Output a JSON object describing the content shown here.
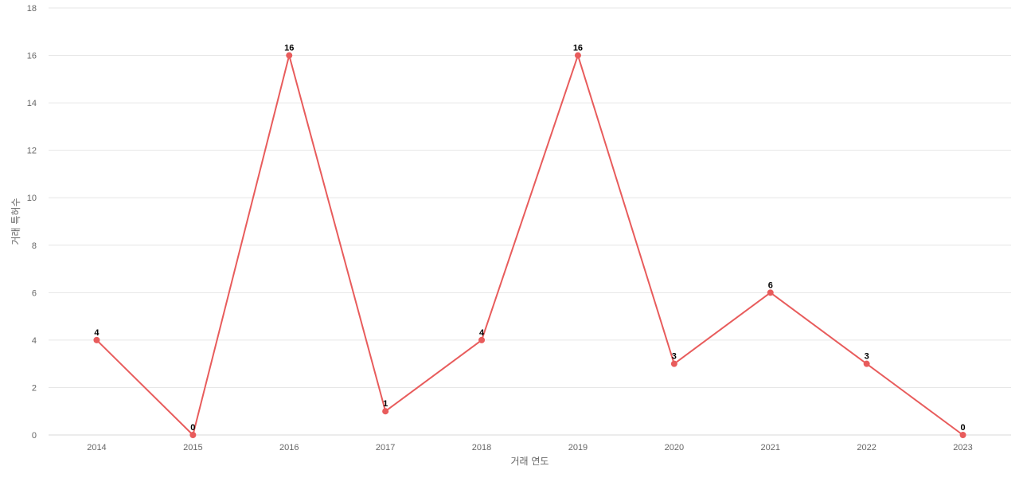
{
  "chart_data": {
    "type": "line",
    "title": "",
    "xlabel": "거래 연도",
    "ylabel": "거래 특허수",
    "categories": [
      "2014",
      "2015",
      "2016",
      "2017",
      "2018",
      "2019",
      "2020",
      "2021",
      "2022",
      "2023"
    ],
    "series": [
      {
        "values": [
          4,
          0,
          16,
          1,
          4,
          16,
          3,
          6,
          3,
          0
        ],
        "color": "#e85c5c"
      }
    ],
    "ylim": [
      0,
      18
    ],
    "yticks": [
      0,
      2,
      4,
      6,
      8,
      10,
      12,
      14,
      16,
      18
    ],
    "grid": true,
    "data_labels": true
  }
}
